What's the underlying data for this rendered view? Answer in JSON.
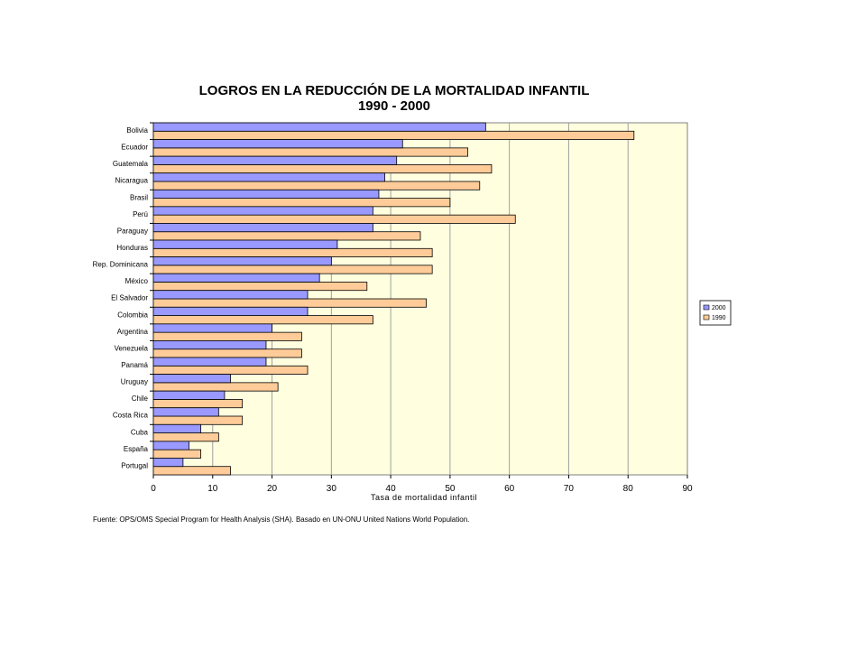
{
  "chart_data": {
    "type": "bar",
    "orientation": "horizontal",
    "title": "LOGROS EN LA REDUCCIÓN DE LA MORTALIDAD INFANTIL",
    "subtitle": "1990 - 2000",
    "xlabel": "Tasa de mortalidad infantil",
    "ylabel": "",
    "xlim": [
      0,
      90
    ],
    "xticks": [
      0,
      10,
      20,
      30,
      40,
      50,
      60,
      70,
      80,
      90
    ],
    "grid": true,
    "legend_position": "right",
    "categories": [
      "Bolivia",
      "Ecuador",
      "Guatemala",
      "Nicaragua",
      "Brasil",
      "Perú",
      "Paraguay",
      "Honduras",
      "Rep. Dominicana",
      "México",
      "El Salvador",
      "Colombia",
      "Argentina",
      "Venezuela",
      "Panamá",
      "Uruguay",
      "Chile",
      "Costa Rica",
      "Cuba",
      "España",
      "Portugal"
    ],
    "series": [
      {
        "name": "2000",
        "color": "#9999ff",
        "values": [
          56,
          42,
          41,
          39,
          38,
          37,
          37,
          31,
          30,
          28,
          26,
          26,
          20,
          19,
          19,
          13,
          12,
          11,
          8,
          6,
          5
        ]
      },
      {
        "name": "1990",
        "color": "#ffcc99",
        "values": [
          81,
          53,
          57,
          55,
          50,
          61,
          45,
          47,
          47,
          36,
          46,
          37,
          25,
          25,
          26,
          21,
          15,
          15,
          11,
          8,
          13
        ]
      }
    ],
    "source": "Fuente: OPS/OMS Special Program for Health Analysis (SHA). Basado en UN-ONU United Nations World Population."
  },
  "colors": {
    "plot_background": "#ffffe0",
    "gridline": "#a0a0a0"
  }
}
